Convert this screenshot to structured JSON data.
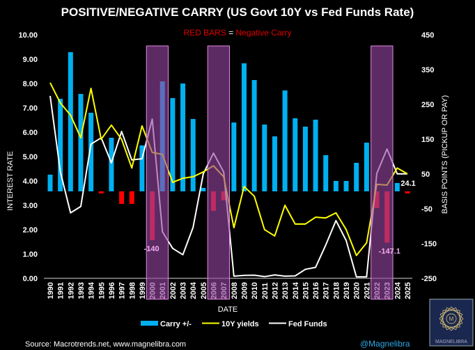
{
  "chart_data": {
    "type": "bar+line",
    "title": "POSITIVE/NEGATIVE CARRY (US Govt 10Y vs Fed Funds Rate)",
    "subtitle": {
      "part1": "RED BARS",
      "part2": " = ",
      "part3": "Negative Carry"
    },
    "xlabel": "DATE",
    "ylabel_left": "INTEREST RATE",
    "ylabel_right": "BASIS POINTS (PICKUP OR PAY)",
    "ylim_left": [
      0,
      10
    ],
    "ylim_right": [
      -250,
      450
    ],
    "left_ticks": [
      "0.00",
      "1.00",
      "2.00",
      "3.00",
      "4.00",
      "5.00",
      "6.00",
      "7.00",
      "8.00",
      "9.00",
      "10.00"
    ],
    "right_ticks": [
      "-250",
      "-150",
      "-50",
      "50",
      "150",
      "250",
      "350",
      "450"
    ],
    "categories": [
      "1990",
      "1991",
      "1992",
      "1993",
      "1994",
      "1995",
      "1996",
      "1997",
      "1998",
      "1999",
      "2000",
      "2001",
      "2002",
      "2003",
      "2004",
      "2005",
      "2006",
      "2007",
      "2008",
      "2009",
      "2010",
      "2011",
      "2012",
      "2013",
      "2014",
      "2015",
      "2016",
      "2017",
      "2018",
      "2019",
      "2020",
      "2021",
      "2022",
      "2023",
      "2024",
      "2025"
    ],
    "series": [
      {
        "name": "Carry +/-",
        "axis": "right",
        "type": "bar",
        "color": "#00b0f0",
        "negative_color": "#ff0000",
        "values": [
          48,
          266,
          400,
          280,
          226,
          -6,
          154,
          -36,
          -36,
          132,
          -140,
          316,
          268,
          310,
          208,
          10,
          -56,
          -26,
          198,
          368,
          320,
          192,
          158,
          290,
          210,
          186,
          206,
          104,
          30,
          30,
          82,
          140,
          -48,
          -147.1,
          24.1,
          -6
        ]
      },
      {
        "name": "10Y yields",
        "axis": "left",
        "type": "line",
        "color": "#ffff00",
        "values": [
          8.03,
          7.2,
          6.7,
          5.77,
          7.8,
          5.71,
          6.29,
          5.71,
          4.53,
          6.26,
          5.17,
          5.09,
          3.94,
          4.11,
          4.17,
          4.37,
          4.62,
          4.17,
          2.08,
          3.77,
          3.37,
          2.0,
          1.74,
          3.0,
          2.23,
          2.23,
          2.51,
          2.48,
          2.69,
          2.0,
          0.94,
          1.46,
          3.86,
          3.83,
          4.53,
          4.29
        ]
      },
      {
        "name": "Fed Funds",
        "axis": "left",
        "type": "line",
        "color": "#ffffff",
        "values": [
          7.49,
          4.37,
          2.69,
          2.95,
          5.51,
          5.77,
          4.74,
          6.03,
          4.86,
          4.91,
          6.54,
          1.91,
          1.23,
          0.97,
          2.09,
          4.29,
          5.14,
          4.37,
          0.09,
          0.12,
          0.13,
          0.07,
          0.14,
          0.09,
          0.1,
          0.37,
          0.45,
          1.37,
          2.37,
          1.55,
          0.06,
          0.06,
          4.31,
          5.31,
          4.29,
          4.29
        ]
      }
    ],
    "shaded_periods": [
      [
        "2000",
        "2001"
      ],
      [
        "2006",
        "2007"
      ],
      [
        "2022",
        "2023"
      ]
    ],
    "annotations": [
      {
        "year": "2000",
        "text": "-140"
      },
      {
        "year": "2023",
        "text": "-147.1"
      },
      {
        "year": "2024",
        "text": "24.1"
      }
    ],
    "legend_position": "bottom"
  },
  "footer": {
    "source": "Source: Macrotrends.net, www.magnelibra.com",
    "handle": "@Magnelibra"
  },
  "logo": {
    "text": "MAGNELIBRA"
  }
}
